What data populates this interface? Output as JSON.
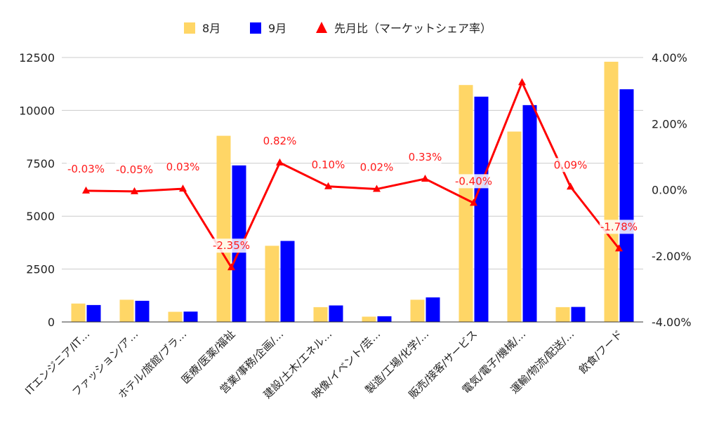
{
  "chart_data": {
    "type": "bar",
    "categories": [
      "ITエンジニア/IT…",
      "ファッション/ア…",
      "ホテル/旅館/ブラ…",
      "医療/医薬/福祉",
      "営業/事務/企画/…",
      "建設/土木/エネル…",
      "映像/イベント/芸…",
      "製造/工場/化学/…",
      "販売/接客/サービス",
      "電気/電子/機械/…",
      "運輸/物流/配送/…",
      "飲食/フード"
    ],
    "series": [
      {
        "name": "8月",
        "type": "bar",
        "axis": "left",
        "color": "#ffd666",
        "values": [
          870,
          1050,
          480,
          8800,
          3600,
          700,
          250,
          1050,
          11200,
          9000,
          700,
          12300
        ]
      },
      {
        "name": "9月",
        "type": "bar",
        "axis": "left",
        "color": "#0000ff",
        "values": [
          800,
          1000,
          490,
          7400,
          3830,
          780,
          270,
          1160,
          10650,
          10250,
          710,
          11000
        ]
      },
      {
        "name": "先月比（マーケットシェア率）",
        "type": "line",
        "axis": "right",
        "color": "#ff0000",
        "values": [
          -0.03,
          -0.05,
          0.03,
          -2.35,
          0.82,
          0.1,
          0.02,
          0.33,
          -0.4,
          3.25,
          0.09,
          -1.78
        ],
        "labels": [
          "-0.03%",
          "-0.05%",
          "0.03%",
          "-2.35%",
          "0.82%",
          "0.10%",
          "0.02%",
          "0.33%",
          "-0.40%",
          "",
          "0.09%",
          "-1.78%"
        ]
      }
    ],
    "left_axis": {
      "ylim": [
        0,
        12500
      ],
      "ticks": [
        "0",
        "2500",
        "5000",
        "7500",
        "10000",
        "12500"
      ]
    },
    "right_axis": {
      "ylim": [
        -4,
        4
      ],
      "ticks": [
        "-4.00%",
        "-2.00%",
        "0.00%",
        "2.00%",
        "4.00%"
      ]
    },
    "grid": true,
    "legend": "top",
    "title": "",
    "xlabel": "",
    "ylabel": ""
  }
}
